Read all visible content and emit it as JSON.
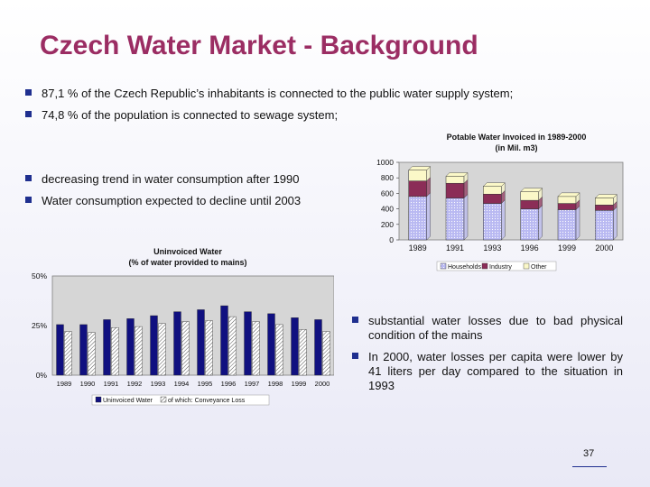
{
  "slide": {
    "title": "Czech Water Market - Background",
    "page_number": "37",
    "bullets": {
      "b1": "87,1 % of the Czech Republic’s inhabitants is connected to the public water supply system;",
      "b2": "74,8 % of the population is connected to sewage system;",
      "b3": "decreasing trend in water consumption after 1990",
      "b4": "Water consumption expected to decline until 2003",
      "b5": "substantial water losses due to bad physical condition of the mains",
      "b6": "In 2000, water losses per capita were lower by 41 liters per day compared to the situation in 1993"
    }
  },
  "chart_data": [
    {
      "type": "bar",
      "stacked": true,
      "title": "Potable Water Invoiced in 1989-2000",
      "subtitle": "(in Mil. m3)",
      "categories": [
        "1989",
        "1991",
        "1993",
        "1996",
        "1999",
        "2000"
      ],
      "ylim": [
        0,
        1000
      ],
      "yticks": [
        "0",
        "200",
        "400",
        "600",
        "800",
        "1000"
      ],
      "legend_position": "bottom",
      "series": [
        {
          "name": "Households",
          "color": "#b9b9f2",
          "values": [
            560,
            540,
            470,
            400,
            390,
            380
          ]
        },
        {
          "name": "Industry",
          "color": "#8b2d57",
          "values": [
            200,
            190,
            120,
            110,
            80,
            70
          ]
        },
        {
          "name": "Other",
          "color": "#fbf8c8",
          "values": [
            140,
            90,
            100,
            110,
            90,
            90
          ]
        }
      ]
    },
    {
      "type": "bar",
      "title": "Uninvoiced Water",
      "subtitle": "(% of water provided to mains)",
      "categories": [
        "1989",
        "1990",
        "1991",
        "1992",
        "1993",
        "1994",
        "1995",
        "1996",
        "1997",
        "1998",
        "1999",
        "2000"
      ],
      "ylim": [
        0,
        50
      ],
      "yticks": [
        "0%",
        "25%",
        "50%"
      ],
      "legend_position": "bottom",
      "series": [
        {
          "name": "Uninvoiced Water",
          "color": "#101080",
          "values": [
            25.5,
            25.5,
            28,
            28.5,
            30,
            32,
            33,
            35,
            32,
            31,
            29,
            28
          ]
        },
        {
          "name": "of which: Conveyance Loss",
          "color": "#cfcfcf",
          "values": [
            22,
            21.5,
            24,
            24.5,
            26,
            27,
            27.5,
            29.5,
            27,
            25.5,
            23,
            22
          ]
        }
      ]
    }
  ]
}
